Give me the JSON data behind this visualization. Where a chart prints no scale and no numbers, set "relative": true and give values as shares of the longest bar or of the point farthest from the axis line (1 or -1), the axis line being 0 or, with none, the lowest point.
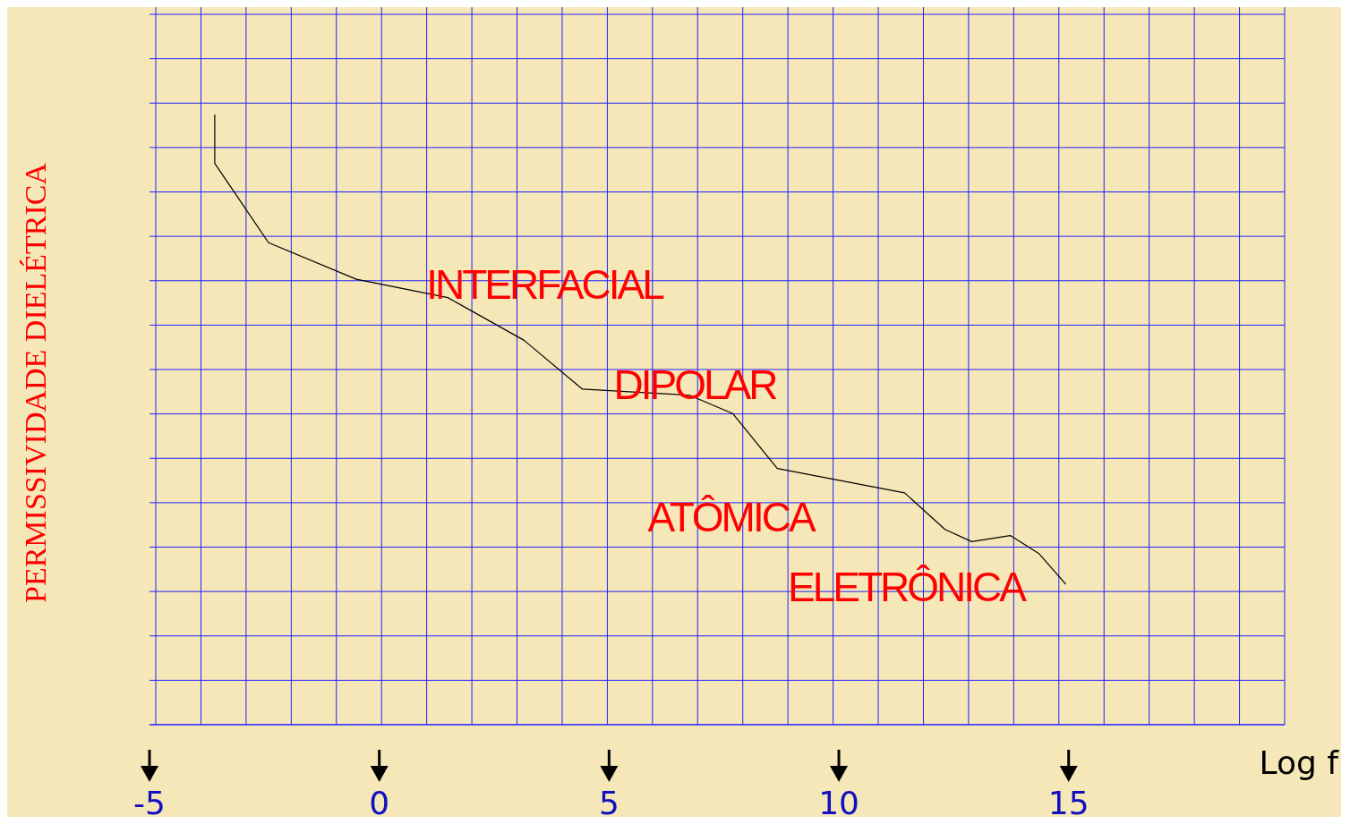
{
  "chart_data": {
    "type": "line",
    "relative": true,
    "xlabel": "Log f",
    "ylabel": "PERMISSIVIDADE DIELÉTRICA",
    "xlim": [
      -5,
      19.7
    ],
    "xticks": [
      -5,
      0,
      5,
      10,
      15
    ],
    "grid": true,
    "marker": "none",
    "line_style": "solid",
    "series": [
      {
        "color": "#000000",
        "x": [
          -3.58,
          -3.58,
          -2.41,
          -0.5,
          1.49,
          3.15,
          4.42,
          6.75,
          7.69,
          8.66,
          11.43,
          12.31,
          12.89,
          13.73,
          14.36,
          14.94
        ],
        "values": [
          1.0,
          0.92,
          0.79,
          0.73,
          0.7,
          0.63,
          0.55,
          0.54,
          0.51,
          0.42,
          0.38,
          0.32,
          0.3,
          0.31,
          0.28,
          0.23
        ]
      }
    ],
    "annotations": [
      "INTERFACIAL",
      "DIPOLAR",
      "ATÔMICA",
      "ELETRÔNICA"
    ]
  }
}
